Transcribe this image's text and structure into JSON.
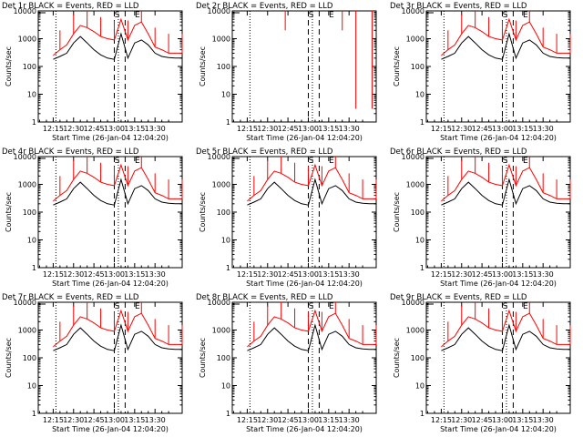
{
  "figure": {
    "common": {
      "ylabel": "Counts/sec",
      "xlabel": "Start Time (26-Jan-04 12:04:20)",
      "x_tick_labels": [
        "12:15",
        "12:30",
        "12:45",
        "13:00",
        "13:15",
        "13:30"
      ],
      "y_tick_labels": [
        "1",
        "10",
        "100",
        "1000",
        "10000"
      ],
      "series": [
        {
          "name": "Events",
          "color": "#000000"
        },
        {
          "name": "LLD",
          "color": "#ff0000"
        }
      ]
    }
  },
  "chart_data": [
    {
      "type": "line",
      "title": "Det 1r BLACK = Events, RED = LLD",
      "xlabel": "Start Time (26-Jan-04 12:04:20)",
      "ylabel": "Counts/sec",
      "yscale": "log",
      "ylim": [
        1,
        10000
      ],
      "x_ticks": [
        "12:15",
        "12:30",
        "12:45",
        "13:00",
        "13:15",
        "13:30"
      ],
      "flags": [
        "S",
        "E"
      ],
      "x_minutes": [
        0,
        5,
        10,
        15,
        20,
        25,
        30,
        35,
        40,
        45,
        50,
        55,
        60,
        65,
        70,
        75,
        80,
        85,
        90,
        95
      ],
      "series": [
        {
          "name": "Events",
          "values": [
            180,
            230,
            300,
            700,
            1200,
            700,
            400,
            260,
            200,
            180,
            1500,
            200,
            700,
            900,
            600,
            300,
            230,
            210,
            200,
            200
          ]
        },
        {
          "name": "LLD",
          "values": [
            250,
            400,
            600,
            1500,
            3000,
            2500,
            1800,
            1200,
            1000,
            900,
            5000,
            900,
            3000,
            4000,
            1500,
            500,
            400,
            300,
            300,
            300
          ]
        }
      ]
    },
    {
      "type": "line",
      "title": "Det 2r BLACK = Events, RED = LLD",
      "xlabel": "Start Time (26-Jan-04 12:04:20)",
      "ylabel": "Counts/sec",
      "yscale": "log",
      "ylim": [
        1,
        10000
      ],
      "x_ticks": [
        "12:15",
        "12:30",
        "12:45",
        "13:00",
        "13:15",
        "13:30"
      ],
      "flags": [
        "S",
        "E"
      ],
      "x_minutes": [],
      "series": [
        {
          "name": "Events",
          "values": []
        },
        {
          "name": "LLD",
          "values": []
        }
      ]
    },
    {
      "type": "line",
      "title": "Det 3r BLACK = Events, RED = LLD",
      "xlabel": "Start Time (26-Jan-04 12:04:20)",
      "ylabel": "Counts/sec",
      "yscale": "log",
      "ylim": [
        1,
        10000
      ],
      "x_ticks": [
        "12:15",
        "12:30",
        "12:45",
        "13:00",
        "13:15",
        "13:30"
      ],
      "flags": [
        "S",
        "E"
      ],
      "x_minutes": [
        0,
        5,
        10,
        15,
        20,
        25,
        30,
        35,
        40,
        45,
        50,
        55,
        60,
        65,
        70,
        75,
        80,
        85,
        90,
        95
      ],
      "series": [
        {
          "name": "Events",
          "values": [
            180,
            230,
            300,
            700,
            1200,
            700,
            400,
            260,
            200,
            180,
            1500,
            200,
            700,
            900,
            600,
            300,
            230,
            210,
            200,
            200
          ]
        },
        {
          "name": "LLD",
          "values": [
            250,
            400,
            600,
            1500,
            3000,
            2500,
            1800,
            1200,
            1000,
            900,
            5000,
            900,
            3000,
            4000,
            1500,
            500,
            400,
            300,
            300,
            300
          ]
        }
      ]
    },
    {
      "type": "line",
      "title": "Det 4r BLACK = Events, RED = LLD",
      "xlabel": "Start Time (26-Jan-04 12:04:20)",
      "ylabel": "Counts/sec",
      "yscale": "log",
      "ylim": [
        1,
        10000
      ],
      "x_ticks": [
        "12:15",
        "12:30",
        "12:45",
        "13:00",
        "13:15",
        "13:30"
      ],
      "flags": [
        "S",
        "E"
      ],
      "x_minutes": [
        0,
        5,
        10,
        15,
        20,
        25,
        30,
        35,
        40,
        45,
        50,
        55,
        60,
        65,
        70,
        75,
        80,
        85,
        90,
        95
      ],
      "series": [
        {
          "name": "Events",
          "values": [
            180,
            230,
            300,
            700,
            1200,
            700,
            400,
            260,
            200,
            180,
            1500,
            200,
            700,
            900,
            600,
            300,
            230,
            210,
            200,
            200
          ]
        },
        {
          "name": "LLD",
          "values": [
            250,
            400,
            600,
            1500,
            3000,
            2500,
            1800,
            1200,
            1000,
            900,
            5000,
            900,
            3000,
            4000,
            1500,
            500,
            400,
            300,
            300,
            300
          ]
        }
      ]
    },
    {
      "type": "line",
      "title": "Det 5r BLACK = Events, RED = LLD",
      "xlabel": "Start Time (26-Jan-04 12:04:20)",
      "ylabel": "Counts/sec",
      "yscale": "log",
      "ylim": [
        1,
        10000
      ],
      "x_ticks": [
        "12:15",
        "12:30",
        "12:45",
        "13:00",
        "13:15",
        "13:30"
      ],
      "flags": [
        "S",
        "E"
      ],
      "x_minutes": [
        0,
        5,
        10,
        15,
        20,
        25,
        30,
        35,
        40,
        45,
        50,
        55,
        60,
        65,
        70,
        75,
        80,
        85,
        90,
        95
      ],
      "series": [
        {
          "name": "Events",
          "values": [
            180,
            230,
            300,
            700,
            1200,
            700,
            400,
            260,
            200,
            180,
            1500,
            200,
            700,
            900,
            600,
            300,
            230,
            210,
            200,
            200
          ]
        },
        {
          "name": "LLD",
          "values": [
            250,
            400,
            600,
            1500,
            3000,
            2500,
            1800,
            1200,
            1000,
            900,
            5000,
            900,
            3000,
            4000,
            1500,
            500,
            400,
            300,
            300,
            300
          ]
        }
      ]
    },
    {
      "type": "line",
      "title": "Det 6r BLACK = Events, RED = LLD",
      "xlabel": "Start Time (26-Jan-04 12:04:20)",
      "ylabel": "Counts/sec",
      "yscale": "log",
      "ylim": [
        1,
        10000
      ],
      "x_ticks": [
        "12:15",
        "12:30",
        "12:45",
        "13:00",
        "13:15",
        "13:30"
      ],
      "flags": [
        "S",
        "E"
      ],
      "x_minutes": [
        0,
        5,
        10,
        15,
        20,
        25,
        30,
        35,
        40,
        45,
        50,
        55,
        60,
        65,
        70,
        75,
        80,
        85,
        90,
        95
      ],
      "series": [
        {
          "name": "Events",
          "values": [
            180,
            230,
            300,
            700,
            1200,
            700,
            400,
            260,
            200,
            180,
            1500,
            200,
            700,
            900,
            600,
            300,
            230,
            210,
            200,
            200
          ]
        },
        {
          "name": "LLD",
          "values": [
            250,
            400,
            600,
            1500,
            3000,
            2500,
            1800,
            1200,
            1000,
            900,
            5000,
            900,
            3000,
            4000,
            1500,
            500,
            400,
            300,
            300,
            300
          ]
        }
      ]
    },
    {
      "type": "line",
      "title": "Det 7r BLACK = Events, RED = LLD",
      "xlabel": "Start Time (26-Jan-04 12:04:20)",
      "ylabel": "Counts/sec",
      "yscale": "log",
      "ylim": [
        1,
        10000
      ],
      "x_ticks": [
        "12:15",
        "12:30",
        "12:45",
        "13:00",
        "13:15",
        "13:30"
      ],
      "flags": [
        "S",
        "E"
      ],
      "x_minutes": [
        0,
        5,
        10,
        15,
        20,
        25,
        30,
        35,
        40,
        45,
        50,
        55,
        60,
        65,
        70,
        75,
        80,
        85,
        90,
        95
      ],
      "series": [
        {
          "name": "Events",
          "values": [
            180,
            230,
            300,
            700,
            1200,
            700,
            400,
            260,
            200,
            180,
            1500,
            200,
            700,
            900,
            600,
            300,
            230,
            210,
            200,
            200
          ]
        },
        {
          "name": "LLD",
          "values": [
            250,
            400,
            600,
            1500,
            3000,
            2500,
            1800,
            1200,
            1000,
            900,
            5000,
            900,
            3000,
            4000,
            1500,
            500,
            400,
            300,
            300,
            300
          ]
        }
      ]
    },
    {
      "type": "line",
      "title": "Det 8r BLACK = Events, RED = LLD",
      "xlabel": "Start Time (26-Jan-04 12:04:20)",
      "ylabel": "Counts/sec",
      "yscale": "log",
      "ylim": [
        1,
        10000
      ],
      "x_ticks": [
        "12:15",
        "12:30",
        "12:45",
        "13:00",
        "13:15",
        "13:30"
      ],
      "flags": [
        "S",
        "E"
      ],
      "x_minutes": [
        0,
        5,
        10,
        15,
        20,
        25,
        30,
        35,
        40,
        45,
        50,
        55,
        60,
        65,
        70,
        75,
        80,
        85,
        90,
        95
      ],
      "series": [
        {
          "name": "Events",
          "values": [
            180,
            230,
            300,
            700,
            1200,
            700,
            400,
            260,
            200,
            180,
            1500,
            200,
            700,
            900,
            600,
            300,
            230,
            210,
            200,
            200
          ]
        },
        {
          "name": "LLD",
          "values": [
            250,
            400,
            600,
            1500,
            3000,
            2500,
            1800,
            1200,
            1000,
            900,
            5000,
            900,
            3000,
            4000,
            1500,
            500,
            400,
            300,
            300,
            300
          ]
        }
      ]
    },
    {
      "type": "line",
      "title": "Det 9r BLACK = Events, RED = LLD",
      "xlabel": "Start Time (26-Jan-04 12:04:20)",
      "ylabel": "Counts/sec",
      "yscale": "log",
      "ylim": [
        1,
        10000
      ],
      "x_ticks": [
        "12:15",
        "12:30",
        "12:45",
        "13:00",
        "13:15",
        "13:30"
      ],
      "flags": [
        "S",
        "E"
      ],
      "x_minutes": [
        0,
        5,
        10,
        15,
        20,
        25,
        30,
        35,
        40,
        45,
        50,
        55,
        60,
        65,
        70,
        75,
        80,
        85,
        90,
        95
      ],
      "series": [
        {
          "name": "Events",
          "values": [
            180,
            230,
            300,
            700,
            1200,
            700,
            400,
            260,
            200,
            180,
            1500,
            200,
            700,
            900,
            600,
            300,
            230,
            210,
            200,
            200
          ]
        },
        {
          "name": "LLD",
          "values": [
            250,
            400,
            600,
            1500,
            3000,
            2500,
            1800,
            1200,
            1000,
            900,
            5000,
            900,
            3000,
            4000,
            1500,
            500,
            400,
            300,
            300,
            300
          ]
        }
      ]
    }
  ]
}
